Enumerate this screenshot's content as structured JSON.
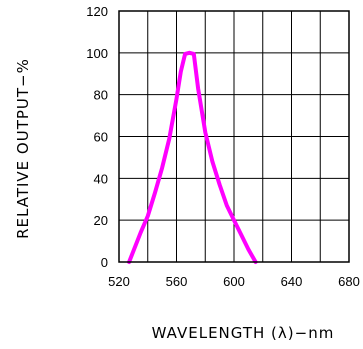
{
  "chart_data": {
    "type": "line",
    "title": "",
    "xlabel": "WAVELENGTH (λ)−nm",
    "ylabel": "RELATIVE OUTPUT−%",
    "xlim": [
      520,
      680
    ],
    "ylim": [
      0,
      120
    ],
    "x_ticks": [
      520,
      560,
      600,
      640,
      680
    ],
    "y_ticks": [
      0,
      20,
      40,
      60,
      80,
      100,
      120
    ],
    "x_grid_step": 20,
    "y_grid_step": 20,
    "grid": true,
    "legend": "none",
    "series": [
      {
        "color": "#ff00ff",
        "points": [
          [
            527,
            0
          ],
          [
            535,
            14
          ],
          [
            540,
            22
          ],
          [
            545,
            33
          ],
          [
            550,
            45
          ],
          [
            555,
            59
          ],
          [
            560,
            78
          ],
          [
            563,
            91
          ],
          [
            566,
            99.5
          ],
          [
            569,
            100
          ],
          [
            572,
            99.5
          ],
          [
            575,
            83
          ],
          [
            580,
            62
          ],
          [
            585,
            48
          ],
          [
            590,
            37
          ],
          [
            595,
            27
          ],
          [
            600,
            20
          ],
          [
            605,
            13
          ],
          [
            610,
            6
          ],
          [
            615,
            0
          ]
        ]
      }
    ]
  }
}
